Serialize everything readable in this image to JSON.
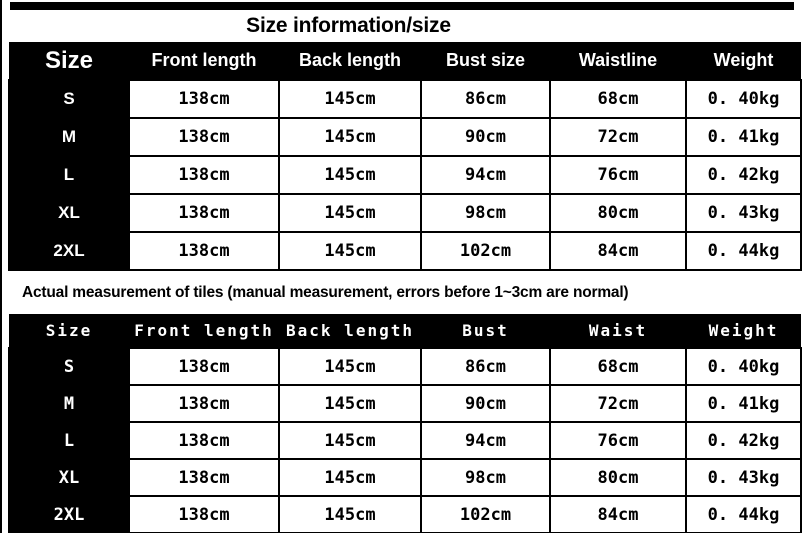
{
  "title": "Size information/size",
  "note": "Actual measurement of tiles (manual measurement, errors before 1~3cm are normal)",
  "colors": {
    "header_bg": "#000000",
    "header_text": "#ffffff",
    "cell_bg": "#ffffff",
    "cell_text": "#000000"
  },
  "size_table": {
    "headers": [
      "Size",
      "Front length",
      "Back length",
      "Bust size",
      "Waistline",
      "Weight"
    ],
    "rows": [
      [
        "S",
        "138cm",
        "145cm",
        "86cm",
        "68cm",
        "0. 40kg"
      ],
      [
        "M",
        "138cm",
        "145cm",
        "90cm",
        "72cm",
        "0. 41kg"
      ],
      [
        "L",
        "138cm",
        "145cm",
        "94cm",
        "76cm",
        "0. 42kg"
      ],
      [
        "XL",
        "138cm",
        "145cm",
        "98cm",
        "80cm",
        "0. 43kg"
      ],
      [
        "2XL",
        "138cm",
        "145cm",
        "102cm",
        "84cm",
        "0. 44kg"
      ]
    ]
  },
  "measurement_table": {
    "headers": [
      "Size",
      "Front length",
      "Back length",
      "Bust",
      "Waist",
      "Weight"
    ],
    "rows": [
      [
        "S",
        "138cm",
        "145cm",
        "86cm",
        "68cm",
        "0. 40kg"
      ],
      [
        "M",
        "138cm",
        "145cm",
        "90cm",
        "72cm",
        "0. 41kg"
      ],
      [
        "L",
        "138cm",
        "145cm",
        "94cm",
        "76cm",
        "0. 42kg"
      ],
      [
        "XL",
        "138cm",
        "145cm",
        "98cm",
        "80cm",
        "0. 43kg"
      ],
      [
        "2XL",
        "138cm",
        "145cm",
        "102cm",
        "84cm",
        "0. 44kg"
      ]
    ]
  }
}
